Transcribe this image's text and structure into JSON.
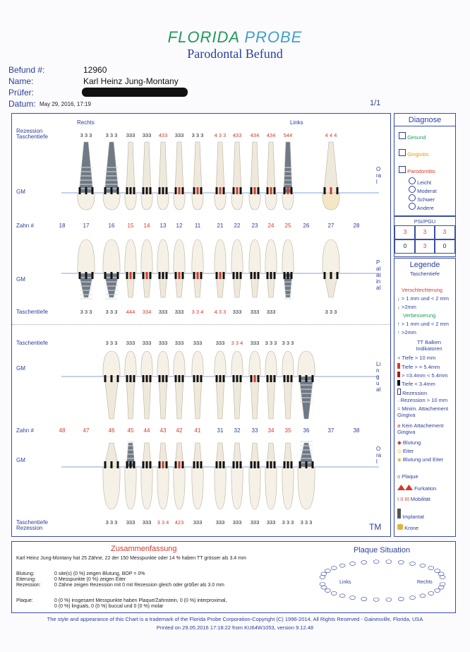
{
  "header": {
    "brand_a": "FLORIDA",
    "brand_b": "PROBE",
    "subtitle": "Parodontal Befund",
    "befund_label": "Befund #:",
    "befund_value": "12960",
    "name_label": "Name:",
    "name_value": "Karl Heinz Jung-Montany",
    "pruefer_label": "Prüfer:",
    "datum_label": "Datum:",
    "datum_value": "May 29, 2016, 17:19",
    "page": "1/1"
  },
  "chart": {
    "upper": {
      "rechts": "Rechts",
      "links": "Links",
      "rezession_label": "Rezession",
      "tt_label": "Taschentiefe",
      "gm_label": "GM",
      "zahn_label": "Zahn #",
      "buccal_tt": [
        "3 3 3",
        "3 3 3",
        "333",
        "333",
        "433",
        "333",
        "3 3 3",
        "4 3 3",
        "433",
        "434",
        "434",
        "544",
        "",
        "4 4 4"
      ],
      "teeth": [
        "18",
        "17",
        "16",
        "15",
        "14",
        "13",
        "12",
        "11",
        "21",
        "22",
        "23",
        "24",
        "25",
        "26",
        "27",
        "28"
      ],
      "palatal_gm": "GM",
      "palatal_tt_label": "Taschentiefe",
      "palatal_tt": [
        "3 3 3",
        "3 3 3",
        "444",
        "334",
        "333",
        "333",
        "3 3 4",
        "4 3 3",
        "333",
        "333",
        "333",
        "",
        "3 3 3"
      ],
      "side_top": "Oral",
      "side_bottom": "Palatinal"
    },
    "lower": {
      "tt_label": "Taschentiefe",
      "gm_label": "GM",
      "zahn_label": "Zahn #",
      "lingual_tt": [
        "3 3 3",
        "333",
        "333",
        "333",
        "333",
        "333",
        "333",
        "3 3 4",
        "333",
        "3 3 3",
        "3 3 3"
      ],
      "teeth": [
        "48",
        "47",
        "46",
        "45",
        "44",
        "43",
        "42",
        "41",
        "31",
        "32",
        "33",
        "34",
        "35",
        "36",
        "37",
        "38"
      ],
      "buccal_gm": "GM",
      "buccal_tt_label": "Taschentiefe",
      "rezession_label": "Rezession",
      "buccal_tt": [
        "3 3 3",
        "333",
        "333",
        "3 3 4",
        "423",
        "333",
        "333",
        "333",
        "333",
        "333",
        "3 3 3",
        "3 3 3"
      ],
      "side_top": "Lingual",
      "side_bottom": "Oral",
      "tm": "TM"
    }
  },
  "diagnose": {
    "title": "Diagnose",
    "gesund": "Gesund",
    "gingivitis": "Gingivitis",
    "parodontitis": "Parodontitis",
    "leicht": "Leicht",
    "moderat": "Moderat",
    "schwer": "Schwer",
    "andere": "Andere"
  },
  "psi": {
    "title": "PSI/PGU",
    "cells": [
      "3",
      "3",
      "3",
      "0",
      "3",
      "0"
    ]
  },
  "legende": {
    "title": "Legende",
    "sub": "Taschentiefe",
    "verschlechterung": "Verschlechterung",
    "v1": "> 1 mm und < 2 mm",
    "v2": ">2mm",
    "verbesserung": "Verbesserung",
    "b1": "> 1 mm und < 2 mm",
    "b2": ">2mm",
    "tt_balken": "TT Balken Indikatoren",
    "l1": "Tiefe > 10 mm",
    "l2": "Tiefe > = 5.4mm",
    "l3": "> =3.4mm < 5.4mm",
    "l4": "Tiefe < 3.4mm",
    "l5": "Rezession",
    "l6": "Rezession > 10 mm",
    "l7": "Minim. Attachement Gingiva",
    "l8": "Kein Attachement Gingiva",
    "l9": "Blutung",
    "l10": "Eiter",
    "l11": "Blutung und Eiter",
    "l12": "Plaque",
    "l13": "Furkation",
    "l14": "Mobilität",
    "l14_sym": "I II III",
    "l15": "Implantat",
    "l16": "Krone"
  },
  "summary": {
    "title": "Zusammenfassung",
    "line1": "Karl Heinz Jung-Montany hat  25 Zähne,  22 der 150 Messpunkte oder 14 %  haben TT grösser als  3.4 mm",
    "blutung_label": "Blutung:",
    "blutung": "0 site(s)  (0 %) zeigen Blutung,  BOP = 0%",
    "eiterung_label": "Eiterung:",
    "eiterung": "0 Messpunkte  (0 %) zeigen Eiter",
    "rezession_label": "Rezession:",
    "rezession": "0 Zähne zeigen Rezession mit  0 mit Rezession gleich oder größer als  3.0 mm",
    "plaque_label": "Plaque:",
    "plaque1": "0  (0 %) insgesamt Messpunkte haben Plaque/Zahnstein,  0  (0 %) interproximal,",
    "plaque2": "0  (0 %) linguals,  0  (0 %) buccal und  0  (0 %) molar",
    "plaque_title": "Plaque Situation",
    "links": "Links",
    "rechts": "Rechts"
  },
  "footer": {
    "line1": "The style and appearance of this Chart is a trademark of the Florida Probe Corporation-Copyright (C) 1996-2014, All Rights Reserved - Gainesville, Florida, USA",
    "line2": "Printed on 29.05.2016 17:18:22 from KU64W1053, version 9.12.48"
  },
  "colors": {
    "blue": "#2b3f9a",
    "red": "#d43a2a",
    "green": "#1e9a5a"
  }
}
